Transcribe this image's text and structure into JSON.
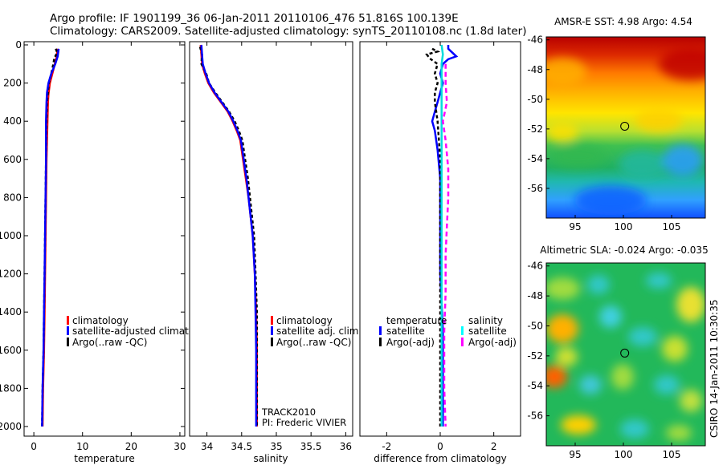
{
  "header": {
    "line1": "Argo profile: IF 1901199_36 06-Jan-2011 20110106_476 51.816S 100.139E",
    "line2": "Climatology: CARS2009. Satellite-adjusted climatology: synTS_20110108.nc (1.8d later)"
  },
  "side_label": "CSIRO 14-Jan-2011 10:30:35",
  "chart_data": [
    {
      "type": "line",
      "id": "temperature",
      "xlabel": "temperature",
      "xlim": [
        -2,
        31
      ],
      "ylim": [
        2050,
        0
      ],
      "xticks": [
        0,
        10,
        20,
        30
      ],
      "yticks": [
        0,
        200,
        400,
        600,
        800,
        1000,
        1200,
        1400,
        1600,
        1800,
        2000
      ],
      "series": [
        {
          "name": "climatology",
          "color": "#ff0000",
          "dash": "",
          "points": [
            [
              4.9,
              20
            ],
            [
              4.7,
              60
            ],
            [
              4.3,
              100
            ],
            [
              3.8,
              150
            ],
            [
              3.3,
              200
            ],
            [
              3.0,
              260
            ],
            [
              2.9,
              300
            ],
            [
              2.8,
              400
            ],
            [
              2.7,
              500
            ],
            [
              2.6,
              600
            ],
            [
              2.5,
              800
            ],
            [
              2.4,
              1000
            ],
            [
              2.3,
              1200
            ],
            [
              2.2,
              1400
            ],
            [
              2.1,
              1600
            ],
            [
              1.9,
              1800
            ],
            [
              1.8,
              2000
            ]
          ]
        },
        {
          "name": "Argo(..raw -QC)",
          "color": "#000000",
          "dash": "4,3",
          "points": [
            [
              4.5,
              20
            ],
            [
              4.8,
              40
            ],
            [
              4.2,
              70
            ],
            [
              4.0,
              100
            ],
            [
              3.6,
              150
            ],
            [
              3.1,
              200
            ],
            [
              2.9,
              250
            ],
            [
              2.7,
              300
            ],
            [
              2.6,
              400
            ],
            [
              2.5,
              600
            ],
            [
              2.4,
              800
            ],
            [
              2.3,
              1000
            ],
            [
              2.2,
              1200
            ],
            [
              2.1,
              1400
            ],
            [
              2.0,
              1600
            ],
            [
              1.8,
              1800
            ],
            [
              1.7,
              2000
            ]
          ]
        },
        {
          "name": "satellite-adjusted climatology",
          "color": "#0000ff",
          "dash": "",
          "points": [
            [
              5.1,
              20
            ],
            [
              4.9,
              60
            ],
            [
              4.4,
              100
            ],
            [
              3.6,
              150
            ],
            [
              3.0,
              200
            ],
            [
              2.7,
              250
            ],
            [
              2.6,
              300
            ],
            [
              2.5,
              400
            ],
            [
              2.5,
              600
            ],
            [
              2.4,
              800
            ],
            [
              2.3,
              1000
            ],
            [
              2.2,
              1200
            ],
            [
              2.1,
              1400
            ],
            [
              2.0,
              1600
            ],
            [
              1.8,
              1800
            ],
            [
              1.7,
              2000
            ]
          ]
        }
      ],
      "legend": [
        {
          "label": "climatology",
          "color": "#ff0000"
        },
        {
          "label": "satellite-adjusted climatology",
          "color": "#0000ff"
        },
        {
          "label": "Argo(..raw -QC)",
          "color": "#000000"
        }
      ]
    },
    {
      "type": "line",
      "id": "salinity",
      "xlabel": "salinity",
      "xlim": [
        33.75,
        36.1
      ],
      "ylim": [
        2050,
        0
      ],
      "xticks": [
        34,
        34.5,
        35,
        35.5,
        36
      ],
      "series": [
        {
          "name": "climatology",
          "color": "#ff0000",
          "dash": "",
          "points": [
            [
              33.91,
              0
            ],
            [
              33.92,
              50
            ],
            [
              33.93,
              100
            ],
            [
              33.97,
              150
            ],
            [
              34.02,
              200
            ],
            [
              34.1,
              250
            ],
            [
              34.2,
              300
            ],
            [
              34.3,
              350
            ],
            [
              34.37,
              400
            ],
            [
              34.43,
              450
            ],
            [
              34.48,
              500
            ],
            [
              34.52,
              600
            ],
            [
              34.56,
              700
            ],
            [
              34.6,
              800
            ],
            [
              34.63,
              900
            ],
            [
              34.66,
              1000
            ],
            [
              34.69,
              1200
            ],
            [
              34.71,
              1400
            ],
            [
              34.72,
              1600
            ],
            [
              34.72,
              1800
            ],
            [
              34.72,
              2000
            ]
          ]
        },
        {
          "name": "Argo(..raw -QC)",
          "color": "#000000",
          "dash": "4,3",
          "points": [
            [
              33.9,
              10
            ],
            [
              33.93,
              50
            ],
            [
              33.92,
              100
            ],
            [
              33.99,
              150
            ],
            [
              34.03,
              200
            ],
            [
              34.12,
              250
            ],
            [
              34.22,
              300
            ],
            [
              34.32,
              350
            ],
            [
              34.4,
              400
            ],
            [
              34.46,
              450
            ],
            [
              34.51,
              500
            ],
            [
              34.55,
              600
            ],
            [
              34.59,
              700
            ],
            [
              34.62,
              800
            ],
            [
              34.65,
              900
            ],
            [
              34.68,
              1000
            ],
            [
              34.7,
              1200
            ],
            [
              34.72,
              1400
            ],
            [
              34.72,
              1600
            ],
            [
              34.72,
              1800
            ],
            [
              34.72,
              2000
            ]
          ]
        },
        {
          "name": "satellite adj. clim.",
          "color": "#0000ff",
          "dash": "",
          "points": [
            [
              33.92,
              0
            ],
            [
              33.93,
              50
            ],
            [
              33.94,
              100
            ],
            [
              33.98,
              150
            ],
            [
              34.03,
              200
            ],
            [
              34.11,
              250
            ],
            [
              34.21,
              300
            ],
            [
              34.31,
              350
            ],
            [
              34.38,
              400
            ],
            [
              34.44,
              450
            ],
            [
              34.49,
              500
            ],
            [
              34.53,
              600
            ],
            [
              34.57,
              700
            ],
            [
              34.6,
              800
            ],
            [
              34.63,
              900
            ],
            [
              34.66,
              1000
            ],
            [
              34.69,
              1200
            ],
            [
              34.7,
              1400
            ],
            [
              34.71,
              1600
            ],
            [
              34.71,
              1800
            ],
            [
              34.71,
              2000
            ]
          ]
        }
      ],
      "legend": [
        {
          "label": "climatology",
          "color": "#ff0000"
        },
        {
          "label": "satellite adj. clim.",
          "color": "#0000ff"
        },
        {
          "label": "Argo(..raw -QC)",
          "color": "#000000"
        }
      ],
      "annotation": [
        "TRACK2010",
        "PI: Frederic VIVIER"
      ]
    },
    {
      "type": "line",
      "id": "difference",
      "xlabel": "difference from climatology",
      "xlim": [
        -3,
        3
      ],
      "ylim": [
        2050,
        0
      ],
      "xticks": [
        -2,
        0,
        2
      ],
      "series": [
        {
          "name": "temperature satellite",
          "color": "#0000ff",
          "dash": "",
          "points": [
            [
              0.3,
              0
            ],
            [
              0.3,
              20
            ],
            [
              0.6,
              60
            ],
            [
              0.3,
              75
            ],
            [
              0.1,
              100
            ],
            [
              0.0,
              150
            ],
            [
              0.1,
              200
            ],
            [
              0.0,
              250
            ],
            [
              -0.1,
              300
            ],
            [
              -0.2,
              350
            ],
            [
              -0.3,
              400
            ],
            [
              -0.2,
              450
            ],
            [
              -0.1,
              550
            ],
            [
              0.0,
              700
            ],
            [
              0.0,
              900
            ],
            [
              0.0,
              1200
            ],
            [
              0.1,
              1500
            ],
            [
              0.1,
              1800
            ],
            [
              0.1,
              2000
            ]
          ]
        },
        {
          "name": "temperature Argo(-adj)",
          "color": "#000000",
          "dash": "4,3",
          "points": [
            [
              -0.3,
              20
            ],
            [
              -0.1,
              35
            ],
            [
              -0.5,
              50
            ],
            [
              -0.4,
              70
            ],
            [
              -0.1,
              100
            ],
            [
              -0.2,
              150
            ],
            [
              -0.1,
              200
            ],
            [
              -0.2,
              250
            ],
            [
              -0.2,
              300
            ],
            [
              -0.1,
              400
            ],
            [
              0.0,
              600
            ],
            [
              0.0,
              900
            ],
            [
              0.0,
              1200
            ],
            [
              0.0,
              1500
            ],
            [
              0.0,
              1800
            ],
            [
              0.0,
              2000
            ]
          ]
        },
        {
          "name": "salinity satellite",
          "color": "#00dddd",
          "dash": "",
          "points": [
            [
              0.05,
              0
            ],
            [
              0.1,
              50
            ],
            [
              0.05,
              100
            ],
            [
              0.05,
              200
            ],
            [
              0.05,
              400
            ],
            [
              0.05,
              700
            ],
            [
              0.05,
              1000
            ],
            [
              0.05,
              1400
            ],
            [
              0.05,
              1700
            ],
            [
              0.05,
              2000
            ]
          ]
        },
        {
          "name": "salinity Argo(-adj)",
          "color": "#ff00ff",
          "dash": "6,4",
          "points": [
            [
              0.2,
              100
            ],
            [
              0.2,
              200
            ],
            [
              0.25,
              300
            ],
            [
              0.1,
              400
            ],
            [
              0.2,
              500
            ],
            [
              0.3,
              650
            ],
            [
              0.3,
              800
            ],
            [
              0.25,
              950
            ],
            [
              0.2,
              1100
            ],
            [
              0.2,
              1300
            ],
            [
              0.15,
              1500
            ],
            [
              0.15,
              1800
            ],
            [
              0.2,
              2000
            ]
          ]
        }
      ],
      "legend_headers": [
        "temperature",
        "salinity"
      ],
      "legend": [
        {
          "label": "satellite",
          "color": "#0000ff"
        },
        {
          "label": "Argo(-adj)",
          "color": "#000000"
        },
        {
          "label": "satellite",
          "color": "#00ffff"
        },
        {
          "label": "Argo(-adj)",
          "color": "#ff00ff"
        }
      ]
    },
    {
      "type": "heatmap",
      "id": "sst_map",
      "title": "AMSR-E SST: 4.98 Argo: 4.54",
      "xlim": [
        92,
        108.5
      ],
      "ylim": [
        -58,
        -45.8
      ],
      "xticks": [
        95,
        100,
        105
      ],
      "yticks": [
        -46,
        -48,
        -50,
        -52,
        -54,
        -56
      ],
      "marker": {
        "lon": 100.139,
        "lat": -51.816
      }
    },
    {
      "type": "heatmap",
      "id": "sla_map",
      "title": "Altimetric SLA: -0.024 Argo: -0.035",
      "xlim": [
        92,
        108.5
      ],
      "ylim": [
        -58,
        -45.8
      ],
      "xticks": [
        95,
        100,
        105
      ],
      "yticks": [
        -46,
        -48,
        -50,
        -52,
        -54,
        -56
      ],
      "marker": {
        "lon": 100.139,
        "lat": -51.816
      }
    }
  ]
}
